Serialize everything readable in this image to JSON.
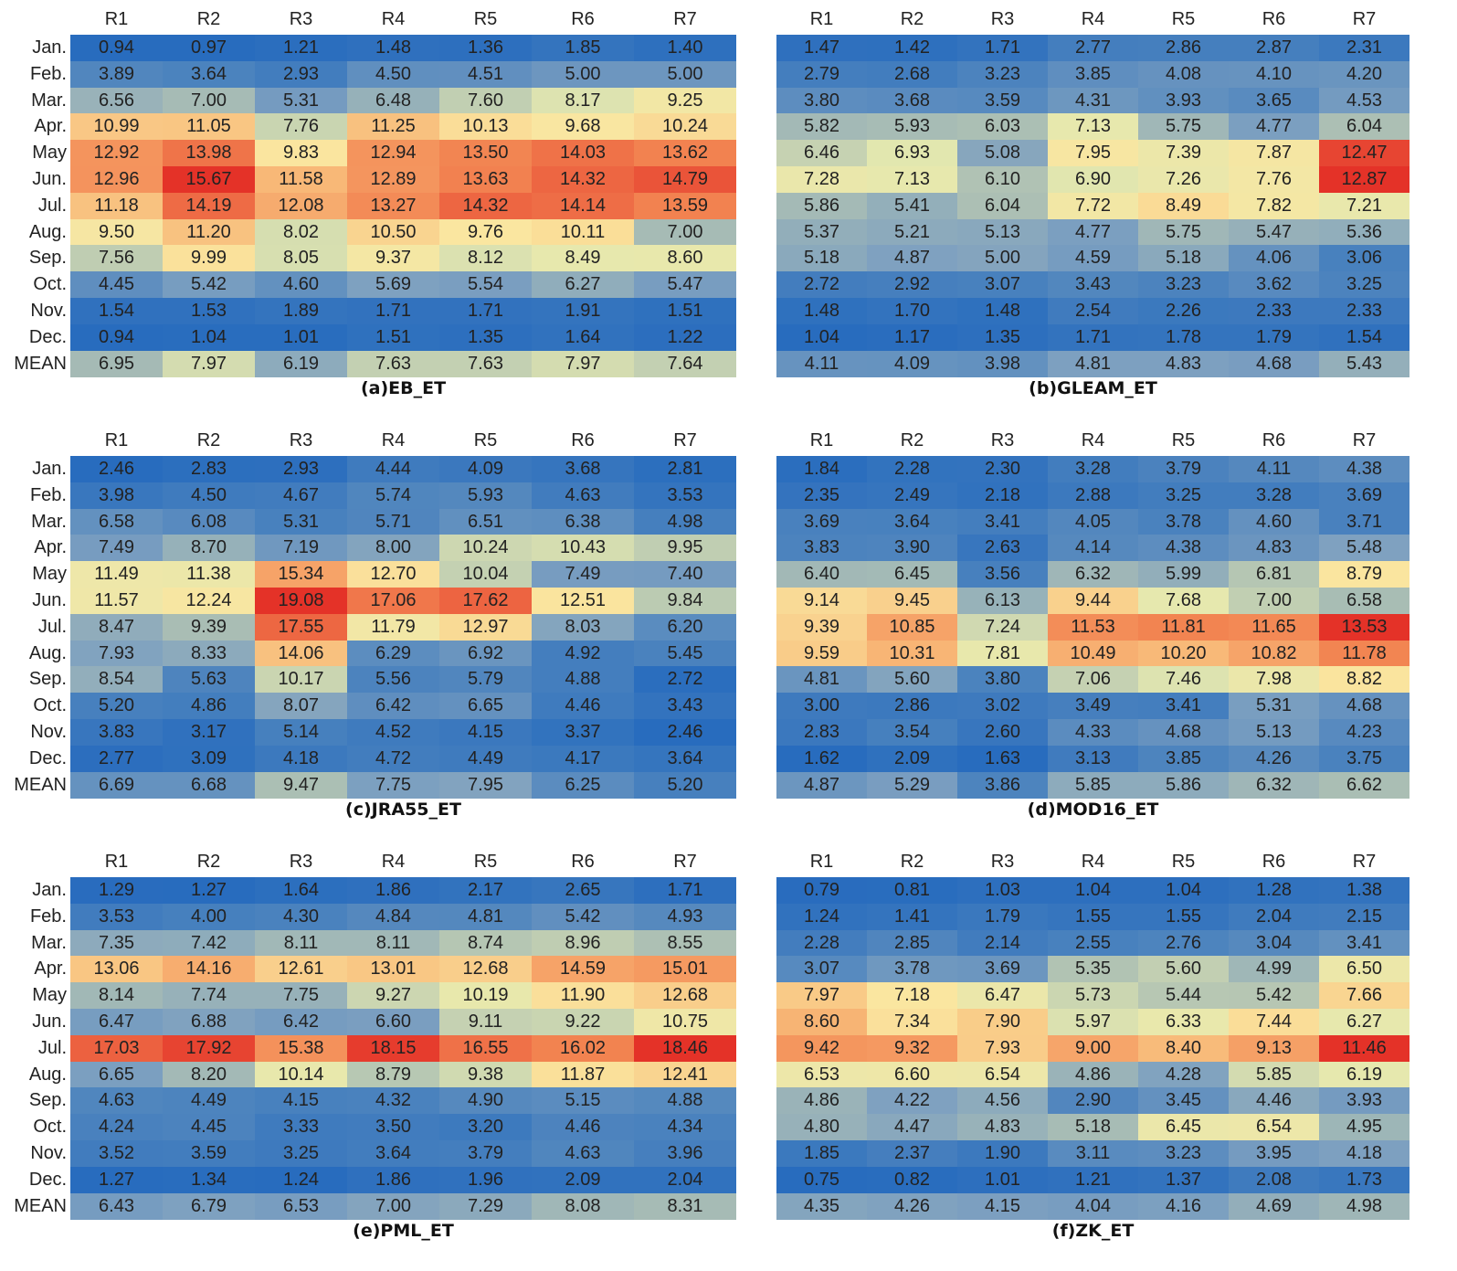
{
  "chart_data": [
    {
      "type": "heatmap",
      "title": "(a)EB_ET",
      "columns": [
        "R1",
        "R2",
        "R3",
        "R4",
        "R5",
        "R6",
        "R7"
      ],
      "rows": [
        "Jan.",
        "Feb.",
        "Mar.",
        "Apr.",
        "May",
        "Jun.",
        "Jul.",
        "Aug.",
        "Sep.",
        "Oct.",
        "Nov.",
        "Dec.",
        "MEAN"
      ],
      "values": [
        [
          "0.94",
          "0.97",
          "1.21",
          "1.48",
          "1.36",
          "1.85",
          "1.40"
        ],
        [
          "3.89",
          "3.64",
          "2.93",
          "4.50",
          "4.51",
          "5.00",
          "5.00"
        ],
        [
          "6.56",
          "7.00",
          "5.31",
          "6.48",
          "7.60",
          "8.17",
          "9.25"
        ],
        [
          "10.99",
          "11.05",
          "7.76",
          "11.25",
          "10.13",
          "9.68",
          "10.24"
        ],
        [
          "12.92",
          "13.98",
          "9.83",
          "12.94",
          "13.50",
          "14.03",
          "13.62"
        ],
        [
          "12.96",
          "15.67",
          "11.58",
          "12.89",
          "13.63",
          "14.32",
          "14.79"
        ],
        [
          "11.18",
          "14.19",
          "12.08",
          "13.27",
          "14.32",
          "14.14",
          "13.59"
        ],
        [
          "9.50",
          "11.20",
          "8.02",
          "10.50",
          "9.76",
          "10.11",
          "7.00"
        ],
        [
          "7.56",
          "9.99",
          "8.05",
          "9.37",
          "8.12",
          "8.49",
          "8.60"
        ],
        [
          "4.45",
          "5.42",
          "4.60",
          "5.69",
          "5.54",
          "6.27",
          "5.47"
        ],
        [
          "1.54",
          "1.53",
          "1.89",
          "1.71",
          "1.71",
          "1.91",
          "1.51"
        ],
        [
          "0.94",
          "1.04",
          "1.01",
          "1.51",
          "1.35",
          "1.64",
          "1.22"
        ],
        [
          "6.95",
          "7.97",
          "6.19",
          "7.63",
          "7.63",
          "7.97",
          "7.64"
        ]
      ]
    },
    {
      "type": "heatmap",
      "title": "(b)GLEAM_ET",
      "columns": [
        "R1",
        "R2",
        "R3",
        "R4",
        "R5",
        "R6",
        "R7"
      ],
      "rows": [
        "Jan.",
        "Feb.",
        "Mar.",
        "Apr.",
        "May",
        "Jun.",
        "Jul.",
        "Aug.",
        "Sep.",
        "Oct.",
        "Nov.",
        "Dec.",
        "MEAN"
      ],
      "values": [
        [
          "1.47",
          "1.42",
          "1.71",
          "2.77",
          "2.86",
          "2.87",
          "2.31"
        ],
        [
          "2.79",
          "2.68",
          "3.23",
          "3.85",
          "4.08",
          "4.10",
          "4.20"
        ],
        [
          "3.80",
          "3.68",
          "3.59",
          "4.31",
          "3.93",
          "3.65",
          "4.53"
        ],
        [
          "5.82",
          "5.93",
          "6.03",
          "7.13",
          "5.75",
          "4.77",
          "6.04"
        ],
        [
          "6.46",
          "6.93",
          "5.08",
          "7.95",
          "7.39",
          "7.87",
          "12.47"
        ],
        [
          "7.28",
          "7.13",
          "6.10",
          "6.90",
          "7.26",
          "7.76",
          "12.87"
        ],
        [
          "5.86",
          "5.41",
          "6.04",
          "7.72",
          "8.49",
          "7.82",
          "7.21"
        ],
        [
          "5.37",
          "5.21",
          "5.13",
          "4.77",
          "5.75",
          "5.47",
          "5.36"
        ],
        [
          "5.18",
          "4.87",
          "5.00",
          "4.59",
          "5.18",
          "4.06",
          "3.06"
        ],
        [
          "2.72",
          "2.92",
          "3.07",
          "3.43",
          "3.23",
          "3.62",
          "3.25"
        ],
        [
          "1.48",
          "1.70",
          "1.48",
          "2.54",
          "2.26",
          "2.33",
          "2.33"
        ],
        [
          "1.04",
          "1.17",
          "1.35",
          "1.71",
          "1.78",
          "1.79",
          "1.54"
        ],
        [
          "4.11",
          "4.09",
          "3.98",
          "4.81",
          "4.83",
          "4.68",
          "5.43"
        ]
      ]
    },
    {
      "type": "heatmap",
      "title": "(c)JRA55_ET",
      "columns": [
        "R1",
        "R2",
        "R3",
        "R4",
        "R5",
        "R6",
        "R7"
      ],
      "rows": [
        "Jan.",
        "Feb.",
        "Mar.",
        "Apr.",
        "May",
        "Jun.",
        "Jul.",
        "Aug.",
        "Sep.",
        "Oct.",
        "Nov.",
        "Dec.",
        "MEAN"
      ],
      "values": [
        [
          "2.46",
          "2.83",
          "2.93",
          "4.44",
          "4.09",
          "3.68",
          "2.81"
        ],
        [
          "3.98",
          "4.50",
          "4.67",
          "5.74",
          "5.93",
          "4.63",
          "3.53"
        ],
        [
          "6.58",
          "6.08",
          "5.31",
          "5.71",
          "6.51",
          "6.38",
          "4.98"
        ],
        [
          "7.49",
          "8.70",
          "7.19",
          "8.00",
          "10.24",
          "10.43",
          "9.95"
        ],
        [
          "11.49",
          "11.38",
          "15.34",
          "12.70",
          "10.04",
          "7.49",
          "7.40"
        ],
        [
          "11.57",
          "12.24",
          "19.08",
          "17.06",
          "17.62",
          "12.51",
          "9.84"
        ],
        [
          "8.47",
          "9.39",
          "17.55",
          "11.79",
          "12.97",
          "8.03",
          "6.20"
        ],
        [
          "7.93",
          "8.33",
          "14.06",
          "6.29",
          "6.92",
          "4.92",
          "5.45"
        ],
        [
          "8.54",
          "5.63",
          "10.17",
          "5.56",
          "5.79",
          "4.88",
          "2.72"
        ],
        [
          "5.20",
          "4.86",
          "8.07",
          "6.42",
          "6.65",
          "4.46",
          "3.43"
        ],
        [
          "3.83",
          "3.17",
          "5.14",
          "4.52",
          "4.15",
          "3.37",
          "2.46"
        ],
        [
          "2.77",
          "3.09",
          "4.18",
          "4.72",
          "4.49",
          "4.17",
          "3.64"
        ],
        [
          "6.69",
          "6.68",
          "9.47",
          "7.75",
          "7.95",
          "6.25",
          "5.20"
        ]
      ]
    },
    {
      "type": "heatmap",
      "title": "(d)MOD16_ET",
      "columns": [
        "R1",
        "R2",
        "R3",
        "R4",
        "R5",
        "R6",
        "R7"
      ],
      "rows": [
        "Jan.",
        "Feb.",
        "Mar.",
        "Apr.",
        "May",
        "Jun.",
        "Jul.",
        "Aug.",
        "Sep.",
        "Oct.",
        "Nov.",
        "Dec.",
        "MEAN"
      ],
      "values": [
        [
          "1.84",
          "2.28",
          "2.30",
          "3.28",
          "3.79",
          "4.11",
          "4.38"
        ],
        [
          "2.35",
          "2.49",
          "2.18",
          "2.88",
          "3.25",
          "3.28",
          "3.69"
        ],
        [
          "3.69",
          "3.64",
          "3.41",
          "4.05",
          "3.78",
          "4.60",
          "3.71"
        ],
        [
          "3.83",
          "3.90",
          "2.63",
          "4.14",
          "4.38",
          "4.83",
          "5.48"
        ],
        [
          "6.40",
          "6.45",
          "3.56",
          "6.32",
          "5.99",
          "6.81",
          "8.79"
        ],
        [
          "9.14",
          "9.45",
          "6.13",
          "9.44",
          "7.68",
          "7.00",
          "6.58"
        ],
        [
          "9.39",
          "10.85",
          "7.24",
          "11.53",
          "11.81",
          "11.65",
          "13.53"
        ],
        [
          "9.59",
          "10.31",
          "7.81",
          "10.49",
          "10.20",
          "10.82",
          "11.78"
        ],
        [
          "4.81",
          "5.60",
          "3.80",
          "7.06",
          "7.46",
          "7.98",
          "8.82"
        ],
        [
          "3.00",
          "2.86",
          "3.02",
          "3.49",
          "3.41",
          "5.31",
          "4.68"
        ],
        [
          "2.83",
          "3.54",
          "2.60",
          "4.33",
          "4.68",
          "5.13",
          "4.23"
        ],
        [
          "1.62",
          "2.09",
          "1.63",
          "3.13",
          "3.85",
          "4.26",
          "3.75"
        ],
        [
          "4.87",
          "5.29",
          "3.86",
          "5.85",
          "5.86",
          "6.32",
          "6.62"
        ]
      ]
    },
    {
      "type": "heatmap",
      "title": "(e)PML_ET",
      "columns": [
        "R1",
        "R2",
        "R3",
        "R4",
        "R5",
        "R6",
        "R7"
      ],
      "rows": [
        "Jan.",
        "Feb.",
        "Mar.",
        "Apr.",
        "May",
        "Jun.",
        "Jul.",
        "Aug.",
        "Sep.",
        "Oct.",
        "Nov.",
        "Dec.",
        "MEAN"
      ],
      "values": [
        [
          "1.29",
          "1.27",
          "1.64",
          "1.86",
          "2.17",
          "2.65",
          "1.71"
        ],
        [
          "3.53",
          "4.00",
          "4.30",
          "4.84",
          "4.81",
          "5.42",
          "4.93"
        ],
        [
          "7.35",
          "7.42",
          "8.11",
          "8.11",
          "8.74",
          "8.96",
          "8.55"
        ],
        [
          "13.06",
          "14.16",
          "12.61",
          "13.01",
          "12.68",
          "14.59",
          "15.01"
        ],
        [
          "8.14",
          "7.74",
          "7.75",
          "9.27",
          "10.19",
          "11.90",
          "12.68"
        ],
        [
          "6.47",
          "6.88",
          "6.42",
          "6.60",
          "9.11",
          "9.22",
          "10.75"
        ],
        [
          "17.03",
          "17.92",
          "15.38",
          "18.15",
          "16.55",
          "16.02",
          "18.46"
        ],
        [
          "6.65",
          "8.20",
          "10.14",
          "8.79",
          "9.38",
          "11.87",
          "12.41"
        ],
        [
          "4.63",
          "4.49",
          "4.15",
          "4.32",
          "4.90",
          "5.15",
          "4.88"
        ],
        [
          "4.24",
          "4.45",
          "3.33",
          "3.50",
          "3.20",
          "4.46",
          "4.34"
        ],
        [
          "3.52",
          "3.59",
          "3.25",
          "3.64",
          "3.79",
          "4.63",
          "3.96"
        ],
        [
          "1.27",
          "1.34",
          "1.24",
          "1.86",
          "1.96",
          "2.09",
          "2.04"
        ],
        [
          "6.43",
          "6.79",
          "6.53",
          "7.00",
          "7.29",
          "8.08",
          "8.31"
        ]
      ]
    },
    {
      "type": "heatmap",
      "title": "(f)ZK_ET",
      "columns": [
        "R1",
        "R2",
        "R3",
        "R4",
        "R5",
        "R6",
        "R7"
      ],
      "rows": [
        "Jan.",
        "Feb.",
        "Mar.",
        "Apr.",
        "May",
        "Jun.",
        "Jul.",
        "Aug.",
        "Sep.",
        "Oct.",
        "Nov.",
        "Dec.",
        "MEAN"
      ],
      "values": [
        [
          "0.79",
          "0.81",
          "1.03",
          "1.04",
          "1.04",
          "1.28",
          "1.38"
        ],
        [
          "1.24",
          "1.41",
          "1.79",
          "1.55",
          "1.55",
          "2.04",
          "2.15"
        ],
        [
          "2.28",
          "2.85",
          "2.14",
          "2.55",
          "2.76",
          "3.04",
          "3.41"
        ],
        [
          "3.07",
          "3.78",
          "3.69",
          "5.35",
          "5.60",
          "4.99",
          "6.50"
        ],
        [
          "7.97",
          "7.18",
          "6.47",
          "5.73",
          "5.44",
          "5.42",
          "7.66"
        ],
        [
          "8.60",
          "7.34",
          "7.90",
          "5.97",
          "6.33",
          "7.44",
          "6.27"
        ],
        [
          "9.42",
          "9.32",
          "7.93",
          "9.00",
          "8.40",
          "9.13",
          "11.46"
        ],
        [
          "6.53",
          "6.60",
          "6.54",
          "4.86",
          "4.28",
          "5.85",
          "6.19"
        ],
        [
          "4.86",
          "4.22",
          "4.56",
          "2.90",
          "3.45",
          "4.46",
          "3.93"
        ],
        [
          "4.80",
          "4.47",
          "4.83",
          "5.18",
          "6.45",
          "6.54",
          "4.95"
        ],
        [
          "1.85",
          "2.37",
          "1.90",
          "3.11",
          "3.23",
          "3.95",
          "4.18"
        ],
        [
          "0.75",
          "0.82",
          "1.01",
          "1.21",
          "1.37",
          "2.08",
          "1.73"
        ],
        [
          "4.35",
          "4.26",
          "4.15",
          "4.04",
          "4.16",
          "4.69",
          "4.98"
        ]
      ]
    }
  ]
}
